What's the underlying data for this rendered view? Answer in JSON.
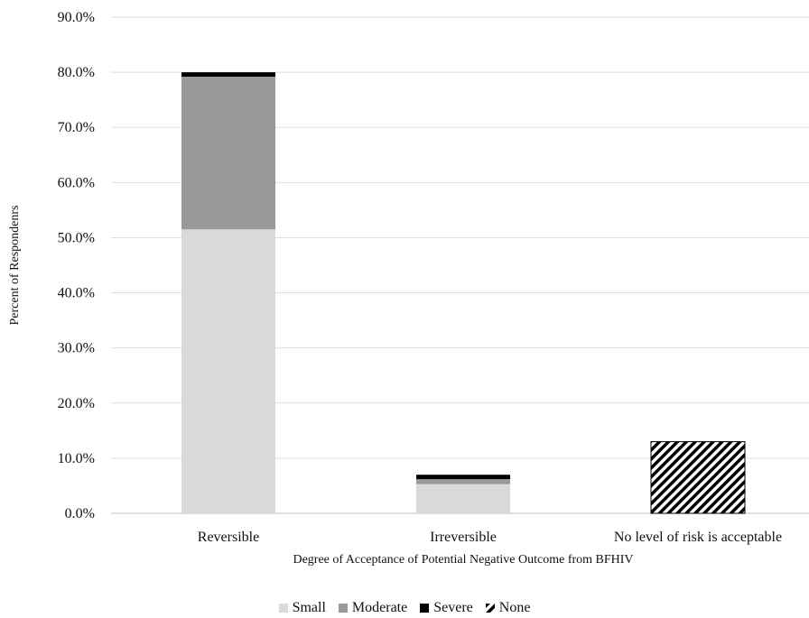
{
  "chart_data": {
    "type": "bar",
    "stacked": true,
    "title": "",
    "xlabel": "Degree of Acceptance of Potential Negative Outcome from BFHIV",
    "ylabel": "Percent of Respondenrs",
    "ylim": [
      0,
      90
    ],
    "yticks": [
      "0.0%",
      "10.0%",
      "20.0%",
      "30.0%",
      "40.0%",
      "50.0%",
      "60.0%",
      "70.0%",
      "80.0%",
      "90.0%"
    ],
    "grid": true,
    "legend_position": "bottom",
    "categories": [
      "Reversible",
      "Irreversible",
      "No level of risk is acceptable"
    ],
    "series": [
      {
        "name": "Small",
        "values": [
          51.5,
          5.3,
          0
        ],
        "color": "#d9d9d9"
      },
      {
        "name": "Moderate",
        "values": [
          27.7,
          0.9,
          0
        ],
        "color": "#999999"
      },
      {
        "name": "Severe",
        "values": [
          0.8,
          0.8,
          0
        ],
        "color": "#000000"
      },
      {
        "name": "None",
        "values": [
          0,
          0,
          13.0
        ],
        "color": "#000000",
        "pattern": "diagonal-stripes"
      }
    ]
  }
}
